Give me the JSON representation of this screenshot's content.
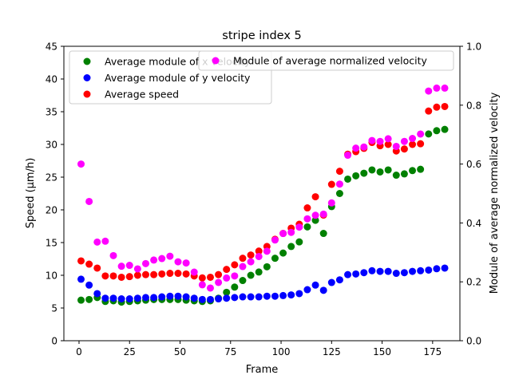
{
  "chart_data": {
    "type": "scatter",
    "title": "stripe index 5",
    "xlabel": "Frame",
    "ylabel": "Speed (μm/h)",
    "y2label": "Module of average normalized velocity",
    "xlim": [
      -7.5,
      188.5
    ],
    "ylim": [
      0,
      45
    ],
    "y2lim": [
      0,
      1.0
    ],
    "xticks": [
      0,
      25,
      50,
      75,
      100,
      125,
      150,
      175
    ],
    "yticks": [
      0,
      5,
      10,
      15,
      20,
      25,
      30,
      35,
      40,
      45
    ],
    "y2ticks": [
      0.0,
      0.2,
      0.4,
      0.6,
      0.8,
      1.0
    ],
    "ytick_labels": [
      "0",
      "5",
      "10",
      "15",
      "20",
      "25",
      "30",
      "35",
      "40",
      "45"
    ],
    "y2tick_labels": [
      "0.0",
      "0.2",
      "0.4",
      "0.6",
      "0.8",
      "1.0"
    ],
    "grid": false,
    "x": [
      1,
      5,
      9,
      13,
      17,
      21,
      25,
      29,
      33,
      37,
      41,
      45,
      49,
      53,
      57,
      61,
      65,
      69,
      73,
      77,
      81,
      85,
      89,
      93,
      97,
      101,
      105,
      109,
      113,
      117,
      121,
      125,
      129,
      133,
      137,
      141,
      145,
      149,
      153,
      157,
      161,
      165,
      169,
      173,
      177,
      181
    ],
    "series": [
      {
        "name": "Average module of x velocity",
        "axis": "left",
        "color": "#008000",
        "values": [
          6.2,
          6.3,
          6.6,
          6.0,
          6.1,
          5.9,
          6.0,
          6.1,
          6.2,
          6.3,
          6.3,
          6.3,
          6.3,
          6.2,
          6.1,
          6.0,
          6.1,
          6.5,
          7.4,
          8.2,
          9.2,
          10.0,
          10.5,
          11.3,
          12.6,
          13.4,
          14.4,
          15.1,
          17.4,
          18.4,
          16.4,
          20.5,
          22.5,
          24.7,
          25.2,
          25.6,
          26.1,
          25.8,
          26.1,
          25.3,
          25.5,
          26.0,
          26.2,
          31.6,
          32.1,
          32.3
        ]
      },
      {
        "name": "Average module of y velocity",
        "axis": "left",
        "color": "#0000ff",
        "values": [
          9.4,
          8.5,
          7.2,
          6.5,
          6.5,
          6.4,
          6.4,
          6.5,
          6.6,
          6.6,
          6.7,
          6.8,
          6.8,
          6.7,
          6.5,
          6.3,
          6.3,
          6.4,
          6.5,
          6.6,
          6.7,
          6.7,
          6.7,
          6.8,
          6.8,
          6.9,
          7.0,
          7.2,
          7.8,
          8.5,
          7.7,
          8.9,
          9.3,
          10.1,
          10.2,
          10.4,
          10.7,
          10.6,
          10.6,
          10.3,
          10.4,
          10.6,
          10.7,
          10.8,
          11.0,
          11.1
        ]
      },
      {
        "name": "Average speed",
        "axis": "left",
        "color": "#ff0000",
        "values": [
          12.2,
          11.7,
          11.1,
          9.9,
          9.9,
          9.7,
          9.8,
          10.0,
          10.1,
          10.1,
          10.2,
          10.3,
          10.3,
          10.2,
          9.9,
          9.6,
          9.7,
          10.1,
          10.9,
          11.6,
          12.6,
          13.1,
          13.7,
          14.4,
          15.5,
          16.4,
          17.2,
          17.8,
          20.3,
          22.0,
          19.2,
          23.9,
          25.9,
          28.5,
          28.9,
          29.4,
          30.3,
          29.8,
          30.0,
          29.0,
          29.3,
          30.0,
          30.1,
          35.1,
          35.7,
          35.8
        ]
      },
      {
        "name": "Module of average normalized velocity",
        "axis": "right",
        "color": "#ff00ff",
        "values": [
          0.6,
          0.473,
          0.335,
          0.338,
          0.289,
          0.253,
          0.256,
          0.244,
          0.262,
          0.274,
          0.279,
          0.287,
          0.268,
          0.264,
          0.233,
          0.19,
          0.179,
          0.198,
          0.213,
          0.22,
          0.252,
          0.268,
          0.286,
          0.304,
          0.342,
          0.364,
          0.368,
          0.386,
          0.414,
          0.426,
          0.43,
          0.468,
          0.532,
          0.63,
          0.654,
          0.658,
          0.68,
          0.677,
          0.686,
          0.66,
          0.677,
          0.687,
          0.702,
          0.848,
          0.858,
          0.858
        ]
      }
    ],
    "legend_left": {
      "placement": "upper-left",
      "entries": [
        "Average module of x velocity",
        "Average module of y velocity",
        "Average speed"
      ]
    },
    "legend_right": {
      "placement": "upper-right",
      "entries": [
        "Module of average normalized velocity"
      ]
    }
  }
}
